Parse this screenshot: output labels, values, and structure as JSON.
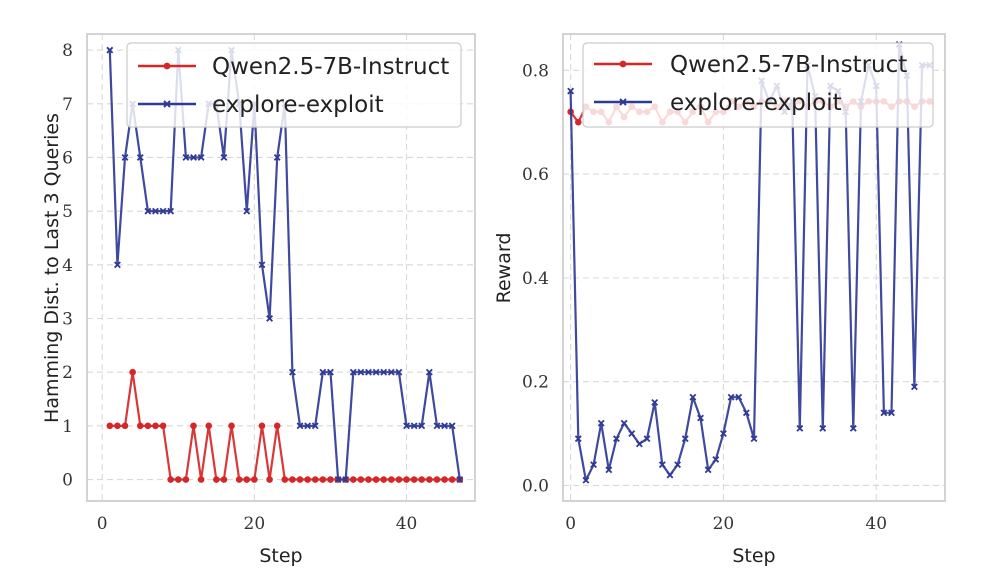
{
  "colors": {
    "red": "#d62728",
    "blue": "#2f3a96"
  },
  "chart_data": [
    {
      "type": "line",
      "xlabel": "Step",
      "ylabel": "Hamming Dist. to Last 3 Queries",
      "xlim": [
        -2,
        49
      ],
      "ylim": [
        -0.4,
        8.3
      ],
      "xticks": [
        0,
        20,
        40
      ],
      "yticks": [
        0,
        1,
        2,
        3,
        4,
        5,
        6,
        7,
        8
      ],
      "legend_position": "top-right",
      "series": [
        {
          "name": "Qwen2.5-7B-Instruct",
          "color": "#d62728",
          "marker": "dot",
          "x": [
            1,
            2,
            3,
            4,
            5,
            6,
            7,
            8,
            9,
            10,
            11,
            12,
            13,
            14,
            15,
            16,
            17,
            18,
            19,
            20,
            21,
            22,
            23,
            24,
            25,
            26,
            27,
            28,
            29,
            30,
            31,
            32,
            33,
            34,
            35,
            36,
            37,
            38,
            39,
            40,
            41,
            42,
            43,
            44,
            45,
            46,
            47
          ],
          "y": [
            1,
            1,
            1,
            2,
            1,
            1,
            1,
            1,
            0,
            0,
            0,
            1,
            0,
            1,
            0,
            0,
            1,
            0,
            0,
            0,
            1,
            0,
            1,
            0,
            0,
            0,
            0,
            0,
            0,
            0,
            0,
            0,
            0,
            0,
            0,
            0,
            0,
            0,
            0,
            0,
            0,
            0,
            0,
            0,
            0,
            0,
            0
          ]
        },
        {
          "name": "explore-exploit",
          "color": "#2f3a96",
          "marker": "x",
          "x": [
            1,
            2,
            3,
            4,
            5,
            6,
            7,
            8,
            9,
            10,
            11,
            12,
            13,
            14,
            15,
            16,
            17,
            18,
            19,
            20,
            21,
            22,
            23,
            24,
            25,
            26,
            27,
            28,
            29,
            30,
            31,
            32,
            33,
            34,
            35,
            36,
            37,
            38,
            39,
            40,
            41,
            42,
            43,
            44,
            45,
            46,
            47
          ],
          "y": [
            8,
            4,
            6,
            7,
            6,
            5,
            5,
            5,
            5,
            8,
            6,
            6,
            6,
            7,
            7,
            6,
            8,
            7,
            5,
            7,
            4,
            3,
            6,
            7,
            2,
            1,
            1,
            1,
            2,
            2,
            0,
            0,
            2,
            2,
            2,
            2,
            2,
            2,
            2,
            1,
            1,
            1,
            2,
            1,
            1,
            1,
            0
          ]
        }
      ]
    },
    {
      "type": "line",
      "xlabel": "Step",
      "ylabel": "Reward",
      "xlim": [
        -1,
        49
      ],
      "ylim": [
        -0.03,
        0.87
      ],
      "xticks": [
        0,
        20,
        40
      ],
      "yticks": [
        0.0,
        0.2,
        0.4,
        0.6,
        0.8
      ],
      "tick_labels": [
        "0.0",
        "0.2",
        "0.4",
        "0.6",
        "0.8"
      ],
      "legend_position": "top-right",
      "series": [
        {
          "name": "Qwen2.5-7B-Instruct",
          "color": "#d62728",
          "marker": "dot",
          "x": [
            0,
            1,
            2,
            3,
            4,
            5,
            6,
            7,
            8,
            9,
            10,
            11,
            12,
            13,
            14,
            15,
            16,
            17,
            18,
            19,
            20,
            21,
            22,
            23,
            24,
            25,
            26,
            27,
            28,
            29,
            30,
            31,
            32,
            33,
            34,
            35,
            36,
            37,
            38,
            39,
            40,
            41,
            42,
            43,
            44,
            45,
            46,
            47
          ],
          "y": [
            0.72,
            0.7,
            0.73,
            0.72,
            0.72,
            0.7,
            0.73,
            0.71,
            0.73,
            0.72,
            0.72,
            0.73,
            0.7,
            0.72,
            0.72,
            0.7,
            0.72,
            0.73,
            0.7,
            0.72,
            0.72,
            0.74,
            0.73,
            0.74,
            0.73,
            0.74,
            0.74,
            0.73,
            0.74,
            0.73,
            0.74,
            0.73,
            0.74,
            0.74,
            0.73,
            0.74,
            0.73,
            0.74,
            0.73,
            0.74,
            0.74,
            0.74,
            0.73,
            0.74,
            0.74,
            0.73,
            0.74,
            0.74
          ]
        },
        {
          "name": "explore-exploit",
          "color": "#2f3a96",
          "marker": "x",
          "x": [
            0,
            1,
            2,
            3,
            4,
            5,
            6,
            7,
            8,
            9,
            10,
            11,
            12,
            13,
            14,
            15,
            16,
            17,
            18,
            19,
            20,
            21,
            22,
            23,
            24,
            25,
            26,
            27,
            28,
            29,
            30,
            31,
            32,
            33,
            34,
            35,
            36,
            37,
            38,
            39,
            40,
            41,
            42,
            43,
            44,
            45,
            46,
            47
          ],
          "y": [
            0.76,
            0.09,
            0.01,
            0.04,
            0.12,
            0.03,
            0.09,
            0.12,
            0.1,
            0.08,
            0.09,
            0.16,
            0.04,
            0.02,
            0.04,
            0.09,
            0.17,
            0.13,
            0.03,
            0.05,
            0.1,
            0.17,
            0.17,
            0.14,
            0.09,
            0.78,
            0.74,
            0.77,
            0.72,
            0.74,
            0.11,
            0.81,
            0.75,
            0.11,
            0.77,
            0.76,
            0.72,
            0.11,
            0.74,
            0.81,
            0.77,
            0.14,
            0.14,
            0.85,
            0.79,
            0.19,
            0.81,
            0.81
          ]
        }
      ]
    }
  ]
}
